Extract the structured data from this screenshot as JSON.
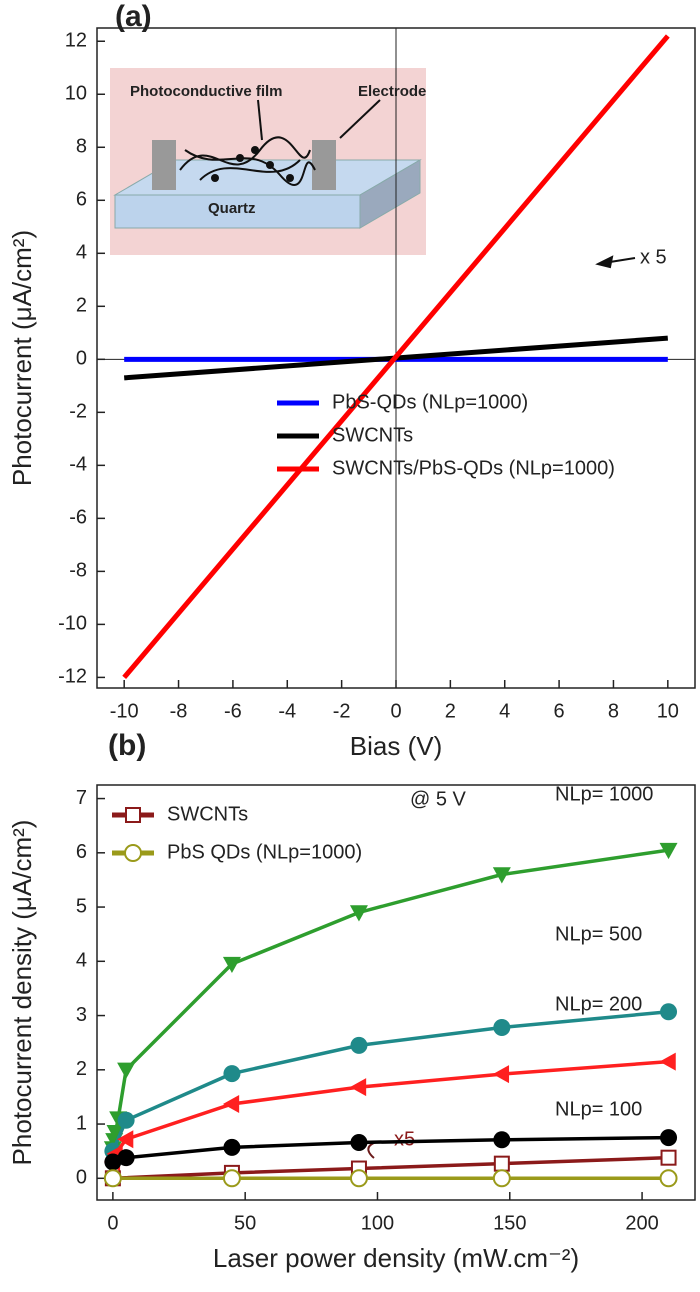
{
  "chart_data": [
    {
      "type": "line",
      "panel_label": "(a)",
      "x_label": "Bias (V)",
      "y_label": "Photocurrent (μA/cm²)",
      "x": [
        -10,
        10
      ],
      "series": [
        {
          "name": "PbS-QDs (NLp=1000)",
          "color": "#0000ff",
          "values": [
            0,
            0
          ]
        },
        {
          "name": "SWCNTs",
          "color": "#000000",
          "values": [
            -0.7,
            0.8
          ]
        },
        {
          "name": "SWCNTs/PbS-QDs (NLp=1000)",
          "color": "#ff0000",
          "values": [
            -12,
            12.2
          ]
        }
      ],
      "xlim": [
        -11,
        11
      ],
      "xticks": [
        -10,
        -8,
        -6,
        -4,
        -2,
        0,
        2,
        4,
        6,
        8,
        10
      ],
      "ylim": [
        -12.4,
        12.5
      ],
      "yticks": [
        -12,
        -10,
        -8,
        -6,
        -4,
        -2,
        0,
        2,
        4,
        6,
        8,
        10,
        12
      ],
      "zero_lines": true,
      "grid": false,
      "legend": "lower right",
      "annotations": [
        "x 5"
      ],
      "inset_labels": [
        "Photoconductive film",
        "Electrode",
        "Quartz"
      ]
    },
    {
      "type": "scatter-line",
      "panel_label": "(b)",
      "x_label": "Laser power density (mW.cm⁻²)",
      "y_label": "Photocurrent density (μA/cm²)",
      "series": [
        {
          "label": "NLp= 1000",
          "color": "#2e9e2e",
          "marker": "triangle-down",
          "x": [
            0,
            0.5,
            1,
            2,
            5,
            45,
            93,
            147,
            210
          ],
          "values": [
            0.55,
            0.7,
            0.85,
            1.1,
            2.0,
            3.95,
            4.9,
            5.6,
            6.05
          ]
        },
        {
          "label": "NLp= 500",
          "color": "#1f8a8a",
          "marker": "circle",
          "x": [
            0,
            5,
            45,
            93,
            147,
            210
          ],
          "values": [
            0.5,
            1.07,
            1.93,
            2.45,
            2.78,
            3.07
          ]
        },
        {
          "label": "NLp= 200",
          "color": "#ff2020",
          "marker": "triangle-left",
          "x": [
            0,
            1,
            5,
            45,
            93,
            147,
            210
          ],
          "values": [
            0.3,
            0.45,
            0.72,
            1.37,
            1.68,
            1.92,
            2.15
          ]
        },
        {
          "label": "NLp= 100",
          "color": "#000000",
          "marker": "circle",
          "x": [
            0,
            5,
            45,
            93,
            147,
            210
          ],
          "values": [
            0.3,
            0.38,
            0.57,
            0.66,
            0.71,
            0.75
          ]
        },
        {
          "name": "SWCNTs",
          "color": "#8b1a1a",
          "marker": "square-open",
          "x": [
            0,
            45,
            93,
            147,
            210
          ],
          "values": [
            0,
            0.1,
            0.18,
            0.27,
            0.38
          ]
        },
        {
          "name": "PbS QDs (NLp=1000)",
          "color": "#9a9a1a",
          "marker": "circle-open",
          "x": [
            0,
            45,
            93,
            147,
            210
          ],
          "values": [
            0,
            0,
            0,
            0,
            0
          ]
        }
      ],
      "xlim": [
        -6,
        220
      ],
      "xticks": [
        0,
        50,
        100,
        150,
        200
      ],
      "ylim": [
        -0.4,
        7.25
      ],
      "yticks": [
        0,
        1,
        2,
        3,
        4,
        5,
        6,
        7
      ],
      "grid": false,
      "legend": "upper left",
      "annotations": [
        "@ 5 V",
        "x5"
      ]
    }
  ]
}
